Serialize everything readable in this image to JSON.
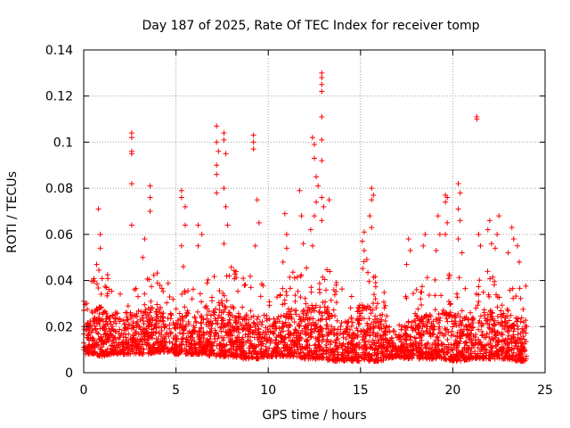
{
  "chart_data": {
    "type": "scatter",
    "title": "Day 187 of 2025, Rate Of TEC Index for receiver tomp",
    "xlabel": "GPS time / hours",
    "ylabel": "ROTI / TECUs",
    "xlim": [
      0,
      25
    ],
    "ylim": [
      0,
      0.14
    ],
    "xticks": [
      "0",
      "5",
      "10",
      "15",
      "20",
      "25"
    ],
    "yticks": [
      "0",
      "0.02",
      "0.04",
      "0.06",
      "0.08",
      "0.1",
      "0.12",
      "0.14"
    ],
    "grid": true,
    "marker": "+",
    "series_color": "#ff0000",
    "series": [
      {
        "name": "ROTI",
        "points": [
          [
            0.0,
            0.031
          ],
          [
            0.0,
            0.027
          ],
          [
            0.0,
            0.02
          ],
          [
            0.0,
            0.013
          ],
          [
            0.0,
            0.01
          ],
          [
            0.8,
            0.071
          ],
          [
            0.9,
            0.06
          ],
          [
            0.9,
            0.054
          ],
          [
            0.7,
            0.047
          ],
          [
            2.6,
            0.104
          ],
          [
            2.6,
            0.102
          ],
          [
            2.6,
            0.096
          ],
          [
            2.6,
            0.095
          ],
          [
            2.6,
            0.082
          ],
          [
            2.6,
            0.064
          ],
          [
            3.6,
            0.081
          ],
          [
            3.6,
            0.076
          ],
          [
            3.6,
            0.07
          ],
          [
            3.3,
            0.058
          ],
          [
            3.2,
            0.05
          ],
          [
            5.3,
            0.079
          ],
          [
            5.3,
            0.076
          ],
          [
            5.5,
            0.072
          ],
          [
            5.5,
            0.064
          ],
          [
            5.3,
            0.055
          ],
          [
            5.4,
            0.046
          ],
          [
            6.2,
            0.064
          ],
          [
            6.4,
            0.06
          ],
          [
            6.2,
            0.055
          ],
          [
            7.2,
            0.107
          ],
          [
            7.2,
            0.1
          ],
          [
            7.3,
            0.096
          ],
          [
            7.2,
            0.09
          ],
          [
            7.2,
            0.086
          ],
          [
            7.2,
            0.078
          ],
          [
            7.6,
            0.104
          ],
          [
            7.6,
            0.101
          ],
          [
            7.7,
            0.095
          ],
          [
            7.6,
            0.08
          ],
          [
            7.7,
            0.072
          ],
          [
            7.8,
            0.064
          ],
          [
            7.6,
            0.056
          ],
          [
            9.2,
            0.103
          ],
          [
            9.2,
            0.1
          ],
          [
            9.2,
            0.097
          ],
          [
            9.4,
            0.075
          ],
          [
            9.5,
            0.065
          ],
          [
            9.3,
            0.055
          ],
          [
            10.9,
            0.069
          ],
          [
            11.0,
            0.06
          ],
          [
            11.0,
            0.054
          ],
          [
            10.8,
            0.048
          ],
          [
            11.7,
            0.079
          ],
          [
            11.8,
            0.068
          ],
          [
            11.9,
            0.056
          ],
          [
            12.4,
            0.102
          ],
          [
            12.5,
            0.099
          ],
          [
            12.5,
            0.093
          ],
          [
            12.6,
            0.085
          ],
          [
            12.7,
            0.081
          ],
          [
            12.6,
            0.074
          ],
          [
            12.5,
            0.068
          ],
          [
            12.3,
            0.062
          ],
          [
            12.4,
            0.055
          ],
          [
            12.9,
            0.13
          ],
          [
            12.9,
            0.128
          ],
          [
            12.9,
            0.125
          ],
          [
            12.9,
            0.122
          ],
          [
            12.9,
            0.111
          ],
          [
            12.9,
            0.101
          ],
          [
            12.9,
            0.092
          ],
          [
            12.9,
            0.076
          ],
          [
            12.9,
            0.066
          ],
          [
            13.3,
            0.075
          ],
          [
            13.0,
            0.072
          ],
          [
            15.2,
            0.061
          ],
          [
            15.1,
            0.057
          ],
          [
            15.2,
            0.053
          ],
          [
            15.6,
            0.08
          ],
          [
            15.7,
            0.077
          ],
          [
            15.6,
            0.075
          ],
          [
            15.5,
            0.068
          ],
          [
            15.6,
            0.063
          ],
          [
            17.6,
            0.058
          ],
          [
            17.7,
            0.053
          ],
          [
            17.5,
            0.047
          ],
          [
            18.5,
            0.06
          ],
          [
            18.4,
            0.055
          ],
          [
            19.2,
            0.068
          ],
          [
            19.3,
            0.06
          ],
          [
            19.1,
            0.053
          ],
          [
            19.6,
            0.077
          ],
          [
            19.7,
            0.076
          ],
          [
            19.6,
            0.074
          ],
          [
            19.7,
            0.065
          ],
          [
            19.6,
            0.06
          ],
          [
            20.3,
            0.082
          ],
          [
            20.4,
            0.078
          ],
          [
            20.3,
            0.071
          ],
          [
            20.4,
            0.066
          ],
          [
            20.3,
            0.058
          ],
          [
            20.5,
            0.052
          ],
          [
            21.3,
            0.111
          ],
          [
            21.3,
            0.11
          ],
          [
            21.4,
            0.06
          ],
          [
            21.5,
            0.055
          ],
          [
            22.0,
            0.066
          ],
          [
            21.9,
            0.062
          ],
          [
            22.1,
            0.056
          ],
          [
            22.5,
            0.068
          ],
          [
            22.4,
            0.06
          ],
          [
            22.3,
            0.054
          ],
          [
            23.2,
            0.063
          ],
          [
            23.3,
            0.058
          ],
          [
            23.0,
            0.052
          ],
          [
            23.6,
            0.048
          ],
          [
            23.5,
            0.055
          ]
        ]
      }
    ],
    "dense_band": {
      "description": "dense cloud of points",
      "x_start": 0.0,
      "x_end": 24.0,
      "envelope": [
        [
          0.0,
          0.008,
          0.028
        ],
        [
          0.5,
          0.008,
          0.045
        ],
        [
          1.0,
          0.007,
          0.048
        ],
        [
          1.5,
          0.008,
          0.04
        ],
        [
          2.0,
          0.008,
          0.036
        ],
        [
          2.5,
          0.008,
          0.04
        ],
        [
          3.0,
          0.008,
          0.042
        ],
        [
          3.5,
          0.008,
          0.045
        ],
        [
          4.0,
          0.009,
          0.045
        ],
        [
          4.5,
          0.009,
          0.04
        ],
        [
          5.0,
          0.008,
          0.04
        ],
        [
          5.5,
          0.008,
          0.046
        ],
        [
          6.0,
          0.008,
          0.038
        ],
        [
          6.5,
          0.008,
          0.038
        ],
        [
          7.0,
          0.007,
          0.045
        ],
        [
          7.5,
          0.007,
          0.052
        ],
        [
          8.0,
          0.007,
          0.048
        ],
        [
          8.5,
          0.006,
          0.04
        ],
        [
          9.0,
          0.006,
          0.044
        ],
        [
          9.5,
          0.006,
          0.045
        ],
        [
          10.0,
          0.007,
          0.036
        ],
        [
          10.5,
          0.007,
          0.04
        ],
        [
          11.0,
          0.007,
          0.045
        ],
        [
          11.5,
          0.007,
          0.044
        ],
        [
          12.0,
          0.006,
          0.045
        ],
        [
          12.5,
          0.006,
          0.05
        ],
        [
          13.0,
          0.006,
          0.048
        ],
        [
          13.5,
          0.005,
          0.042
        ],
        [
          14.0,
          0.005,
          0.038
        ],
        [
          14.5,
          0.005,
          0.04
        ],
        [
          15.0,
          0.005,
          0.05
        ],
        [
          15.5,
          0.005,
          0.052
        ],
        [
          16.0,
          0.005,
          0.04
        ],
        [
          16.5,
          0.006,
          0.032
        ],
        [
          17.0,
          0.007,
          0.025
        ],
        [
          17.5,
          0.006,
          0.035
        ],
        [
          18.0,
          0.006,
          0.038
        ],
        [
          18.5,
          0.006,
          0.042
        ],
        [
          19.0,
          0.006,
          0.04
        ],
        [
          19.5,
          0.006,
          0.045
        ],
        [
          20.0,
          0.005,
          0.042
        ],
        [
          20.5,
          0.005,
          0.045
        ],
        [
          21.0,
          0.006,
          0.038
        ],
        [
          21.5,
          0.006,
          0.042
        ],
        [
          22.0,
          0.006,
          0.045
        ],
        [
          22.5,
          0.006,
          0.042
        ],
        [
          23.0,
          0.006,
          0.04
        ],
        [
          23.5,
          0.005,
          0.042
        ],
        [
          24.0,
          0.005,
          0.038
        ]
      ]
    }
  }
}
